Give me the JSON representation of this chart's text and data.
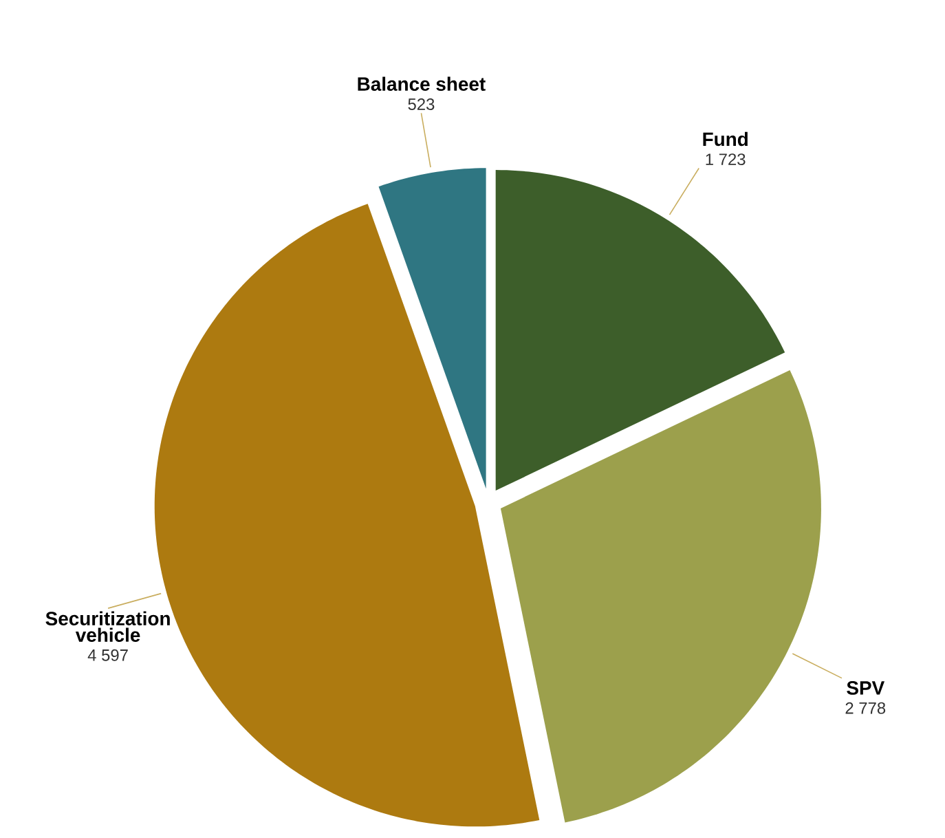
{
  "chart_data": {
    "type": "pie",
    "categories": [
      "Fund",
      "SPV",
      "Securitization vehicle",
      "Balance sheet"
    ],
    "values": [
      1723,
      2778,
      4597,
      523
    ],
    "colors": [
      "#3d5e2a",
      "#9ca04c",
      "#ad7a10",
      "#2f7682"
    ],
    "value_labels": [
      "1 723",
      "2 778",
      "4 597",
      "523"
    ]
  }
}
